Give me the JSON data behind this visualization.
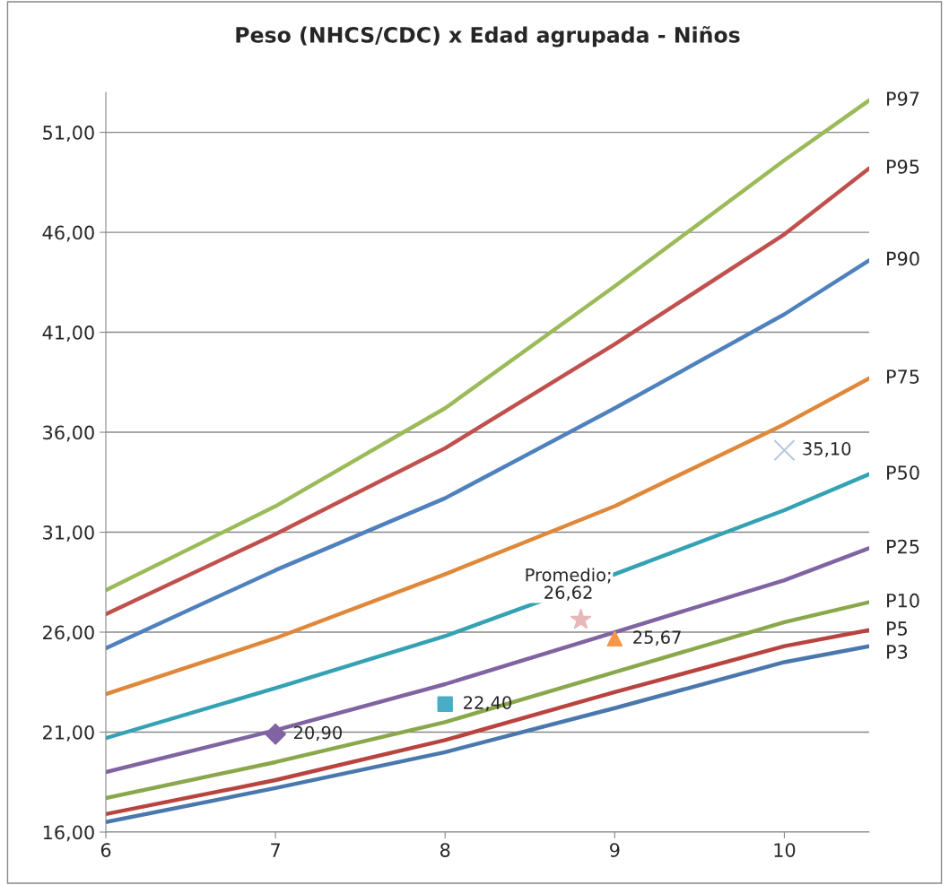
{
  "chart_data": {
    "type": "line",
    "title": "Peso (NHCS/CDC) x Edad agrupada - Niños",
    "xlim": [
      6,
      10.5
    ],
    "xticks": [
      6,
      7,
      8,
      9,
      10
    ],
    "ylim": [
      16,
      53
    ],
    "yticks": [
      {
        "value": 16,
        "label": "16,00"
      },
      {
        "value": 21,
        "label": "21,00"
      },
      {
        "value": 26,
        "label": "26,00"
      },
      {
        "value": 31,
        "label": "31,00"
      },
      {
        "value": 36,
        "label": "36,00"
      },
      {
        "value": 41,
        "label": "41,00"
      },
      {
        "value": 46,
        "label": "46,00"
      },
      {
        "value": 51,
        "label": "51,00"
      }
    ],
    "grid": "y",
    "legend": false,
    "series": [
      {
        "name": "P97",
        "color": "#9bbb59",
        "x": [
          6,
          7,
          8,
          9,
          10,
          10.5
        ],
        "values": [
          28.1,
          32.3,
          37.2,
          43.3,
          49.6,
          52.6
        ]
      },
      {
        "name": "P95",
        "color": "#c0504d",
        "x": [
          6,
          7,
          8,
          9,
          10,
          10.5
        ],
        "values": [
          26.9,
          30.9,
          35.2,
          40.4,
          45.9,
          49.2
        ]
      },
      {
        "name": "P90",
        "color": "#4f81bd",
        "x": [
          6,
          7,
          8,
          9,
          10,
          10.5
        ],
        "values": [
          25.2,
          29.1,
          32.7,
          37.2,
          41.9,
          44.6
        ]
      },
      {
        "name": "P75",
        "color": "#e0883a",
        "x": [
          6,
          7,
          8,
          9,
          10,
          10.5
        ],
        "values": [
          22.9,
          25.7,
          28.9,
          32.3,
          36.4,
          38.7
        ]
      },
      {
        "name": "P50",
        "color": "#35a2b4",
        "x": [
          6,
          7,
          8,
          9,
          10,
          10.5
        ],
        "values": [
          20.7,
          23.2,
          25.8,
          28.9,
          32.1,
          33.9
        ]
      },
      {
        "name": "P25",
        "color": "#8064a2",
        "x": [
          6,
          7,
          8,
          9,
          10,
          10.5
        ],
        "values": [
          19.0,
          21.1,
          23.4,
          26.0,
          28.6,
          30.2
        ]
      },
      {
        "name": "P10",
        "color": "#8aa84b",
        "x": [
          6,
          7,
          8,
          9,
          10,
          10.5
        ],
        "values": [
          17.7,
          19.5,
          21.5,
          24.0,
          26.5,
          27.5
        ]
      },
      {
        "name": "P5",
        "color": "#b8433f",
        "x": [
          6,
          7,
          8,
          9,
          10,
          10.5
        ],
        "values": [
          16.9,
          18.6,
          20.6,
          23.0,
          25.3,
          26.1
        ]
      },
      {
        "name": "P3",
        "color": "#4a78ad",
        "x": [
          6,
          7,
          8,
          9,
          10,
          10.5
        ],
        "values": [
          16.5,
          18.2,
          20.0,
          22.2,
          24.5,
          25.3
        ]
      },
      {
        "type": "scatter",
        "marker": "diamond",
        "color": "#8064a2",
        "x": [
          7
        ],
        "values": [
          20.9
        ],
        "value_labels": [
          "20,90"
        ]
      },
      {
        "type": "scatter",
        "marker": "square",
        "color": "#4bacc6",
        "x": [
          8
        ],
        "values": [
          22.4
        ],
        "value_labels": [
          "22,40"
        ]
      },
      {
        "type": "scatter",
        "marker": "triangle",
        "color": "#f79646",
        "x": [
          9
        ],
        "values": [
          25.67
        ],
        "value_labels": [
          "25,67"
        ]
      },
      {
        "type": "scatter",
        "marker": "cross",
        "color": "#b9c7e0",
        "x": [
          10
        ],
        "values": [
          35.1
        ],
        "value_labels": [
          "35,10"
        ]
      },
      {
        "type": "scatter",
        "marker": "star",
        "color": "#e6b9b8",
        "x": [
          8.8
        ],
        "values": [
          26.62
        ],
        "value_labels": [
          "Promedio;\n26,62"
        ]
      }
    ]
  }
}
